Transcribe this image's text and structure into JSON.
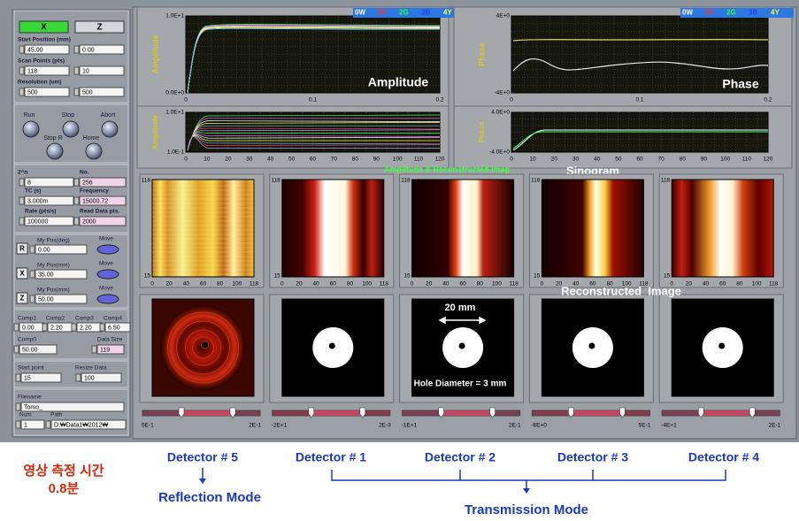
{
  "legend": [
    "0W",
    "1R",
    "2G",
    "3B",
    "4Y"
  ],
  "controls": {
    "axis_buttons": [
      "X",
      "Z"
    ],
    "setup": [
      {
        "label": "Start Position (mm)",
        "values": [
          "45.00",
          "0.00"
        ]
      },
      {
        "label": "Scan Points (pts)",
        "values": [
          "118",
          "10"
        ]
      },
      {
        "label": "Resolution (um)",
        "values": [
          "500",
          "500"
        ]
      }
    ],
    "run_buttons": [
      "Run",
      "Stop",
      "Abort",
      "Stop R",
      "Home"
    ],
    "acquisition": [
      {
        "label": "2^n",
        "value": "8"
      },
      {
        "label": "No.",
        "value": "256"
      },
      {
        "label": "TC (s)",
        "value": "3.000m"
      },
      {
        "label": "Frequency",
        "value": "15000.72"
      },
      {
        "label": "Rate (pts/s)",
        "value": "100000"
      },
      {
        "label": "Read Data pts.",
        "value": "2000"
      }
    ],
    "motors": [
      {
        "axis": "R",
        "label": "My Pos(deg)",
        "value": "0.00",
        "button": "Move"
      },
      {
        "axis": "X",
        "label": "My Pos(mm)",
        "value": "35.00",
        "button": "Move"
      },
      {
        "axis": "Z",
        "label": "My Pos(mm)",
        "value": "50.00",
        "button": "Move"
      }
    ],
    "comps": [
      {
        "label": "Comp1",
        "value": "0.00"
      },
      {
        "label": "Comp2",
        "value": "2.20"
      },
      {
        "label": "Comp3",
        "value": "2.20"
      },
      {
        "label": "Comp4",
        "value": "6.50"
      }
    ],
    "comp0": {
      "label": "Comp0",
      "value": "50.00"
    },
    "data_size": {
      "label": "Data Size",
      "value": "119"
    },
    "start_point": {
      "label": "Start point",
      "value": "15"
    },
    "resize_data": {
      "label": "Resize Data",
      "value": "100"
    },
    "filename": {
      "label": "Filename",
      "value": "Tomo_"
    },
    "num": {
      "label": "Num",
      "value": "1"
    },
    "path": {
      "label": "Path",
      "value": "D:₩Data1₩2012₩"
    }
  },
  "graphs": [
    {
      "ylabel": "Amplitude",
      "yticks": [
        "1.0E+1",
        "0.0E+0"
      ],
      "xticks": [
        "0",
        "0.1",
        "0.2"
      ],
      "overlay": "Amplitude"
    },
    {
      "ylabel": "Phase",
      "yticks": [
        "4E+0",
        "-4E+0"
      ],
      "xticks": [
        "0",
        "0.1",
        "0.2"
      ],
      "overlay": "Phase"
    },
    {
      "ylabel": "Amplitude",
      "yticks": [
        "1.0E+1",
        "1.0E-1"
      ],
      "xticks": [
        "0",
        "10",
        "20",
        "30",
        "40",
        "50",
        "60",
        "70",
        "80",
        "90",
        "100",
        "110",
        "120"
      ]
    },
    {
      "ylabel": "Phase",
      "yticks": [
        "4.0E+0",
        "-4.0E+0"
      ],
      "xticks": [
        "0",
        "10",
        "20",
        "30",
        "40",
        "50",
        "60",
        "70",
        "80",
        "90",
        "100",
        "110",
        "120"
      ]
    }
  ],
  "overlays": {
    "amp_recon": "Amplitude & Reconstructed Imag",
    "sinogram": "Sinogram",
    "reconstructed": "Reconstructed  Image",
    "scale": "20 mm",
    "hole": "Hole Diameter = 3 mm"
  },
  "image_axes": {
    "yticks": [
      "118",
      "15"
    ],
    "xticks": [
      "0",
      "20",
      "40",
      "60",
      "80",
      "100",
      "118"
    ]
  },
  "sliders": [
    [
      "5E-1",
      "2E-1"
    ],
    [
      "-2E+1",
      "2E-3"
    ],
    [
      "-1E+1",
      "2E-1"
    ],
    [
      "-6E+0",
      "5E-1"
    ],
    [
      "-4E+1",
      "2E-1"
    ]
  ],
  "annotations": {
    "time": [
      "영상 측정 시간",
      "0.8분"
    ],
    "detectors": [
      "Detector # 5",
      "Detector # 1",
      "Detector # 2",
      "Detector # 3",
      "Detector # 4"
    ],
    "reflection": "Reflection Mode",
    "transmission": "Transmission Mode"
  }
}
